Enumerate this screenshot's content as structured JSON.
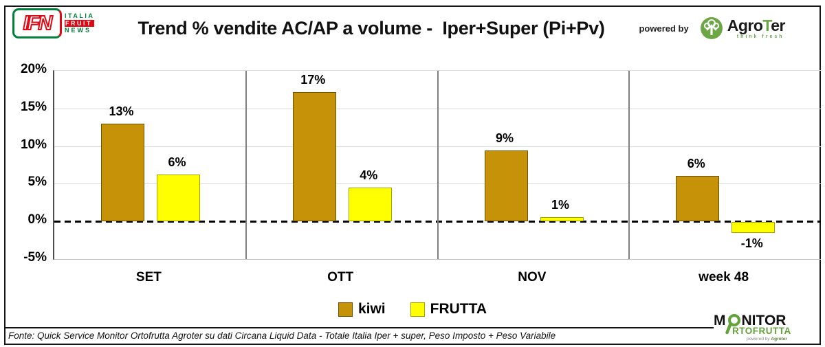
{
  "header": {
    "ifn_logo": {
      "acronym": "IFN",
      "line1": "ITALIA",
      "line2": "FRUIT",
      "line3": "NEWS"
    },
    "title": "Trend % vendite AC/AP a volume -  Iper+Super (Pi+Pv)",
    "powered_by": "powered by",
    "agroter_logo": {
      "part1": "Agro",
      "part2": "T",
      "part3": "er",
      "tagline": "think fresh"
    }
  },
  "chart_data": {
    "type": "bar",
    "title": "Trend % vendite AC/AP a volume -  Iper+Super (Pi+Pv)",
    "categories": [
      "SET",
      "OTT",
      "NOV",
      "week 48"
    ],
    "series": [
      {
        "name": "kiwi",
        "color": "#C69208",
        "border_color": "#6B5200",
        "values": [
          13,
          17,
          9,
          6
        ],
        "value_labels": [
          "13%",
          "17%",
          "9%",
          "6%"
        ],
        "display_heights_pct": [
          13.0,
          17.2,
          9.4,
          6.0
        ]
      },
      {
        "name": "FRUTTA",
        "color": "#FFFF00",
        "border_color": "#A3A300",
        "values": [
          6,
          4,
          1,
          -1
        ],
        "value_labels": [
          "6%",
          "4%",
          "1%",
          "-1%"
        ],
        "display_heights_pct": [
          6.2,
          4.5,
          0.55,
          -1.45
        ]
      }
    ],
    "xlabel": "",
    "ylabel": "",
    "ylim": [
      -5,
      20
    ],
    "ytick_values": [
      20,
      15,
      10,
      5,
      0,
      -5
    ],
    "ytick_labels": [
      "20%",
      "15%",
      "10%",
      "5%",
      "0%",
      "-5%"
    ],
    "grid": true,
    "zero_line": "dashed-black",
    "group_separators": true,
    "legend_position": "bottom-center"
  },
  "footer": {
    "source": "Fonte: Quick Service Monitor Ortofrutta Agroter su dati Circana Liquid Data - Totale Italia Iper + super, Peso Imposto + Peso Variabile",
    "monitor_logo": {
      "m": "M",
      "nitor": "NITOR",
      "line2": "RTOFRUTTA",
      "powered": "powered by ",
      "brand": "Agroter"
    }
  },
  "colors": {
    "kiwi": "#C69208",
    "kiwi_border": "#6B5200",
    "frutta": "#FFFF00",
    "frutta_border": "#A3A300",
    "grid": "#D9D9D9",
    "axis": "#4D4D4D",
    "separator": "#7F7F7F",
    "ifn_green": "#00813A",
    "ifn_red": "#E30613",
    "agroter_green": "#6CA645",
    "monitor_green": "#62A33C"
  }
}
